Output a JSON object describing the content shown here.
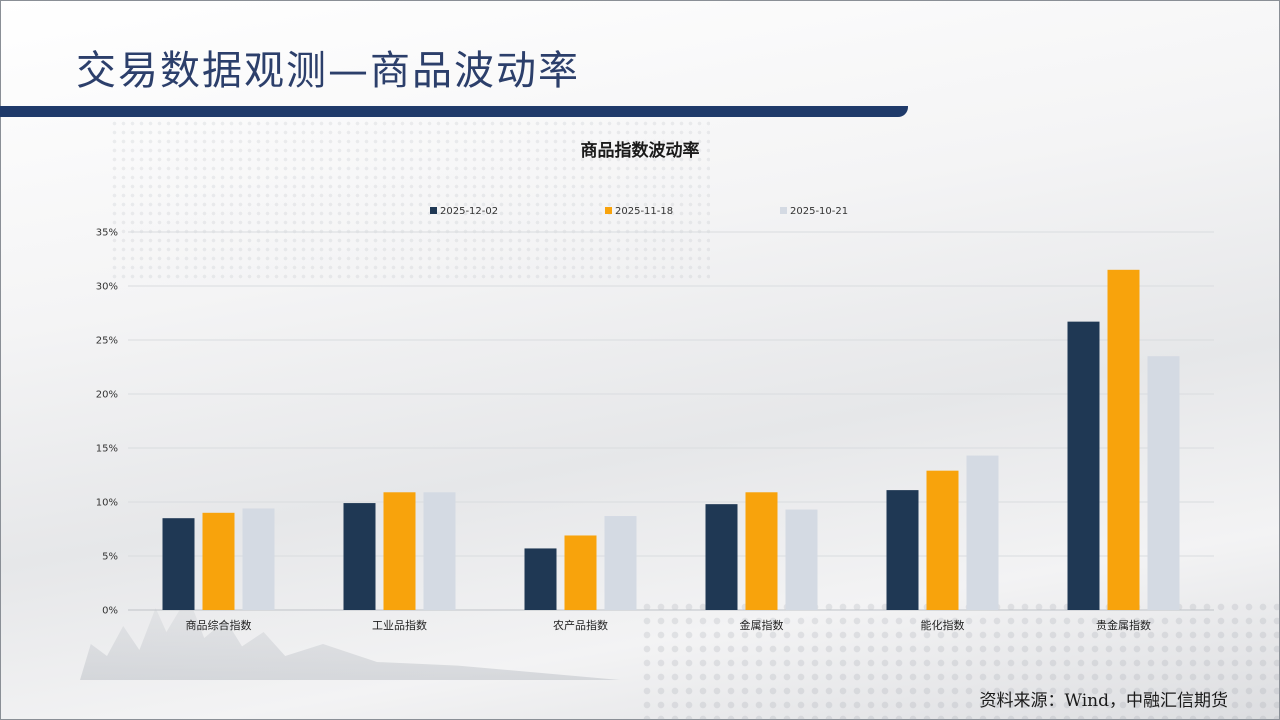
{
  "header": {
    "title": "交易数据观测—商品波动率"
  },
  "colors": {
    "accent": "#1f3a6a",
    "series": [
      "#1f3854",
      "#f8a30c",
      "#d4dae3"
    ]
  },
  "chart_data": {
    "type": "bar",
    "title": "商品指数波动率",
    "categories": [
      "商品综合指数",
      "工业品指数",
      "农产品指数",
      "金属指数",
      "能化指数",
      "贵金属指数"
    ],
    "series": [
      {
        "name": "2025-12-02",
        "values": [
          8.5,
          9.9,
          5.7,
          9.8,
          11.1,
          26.7
        ]
      },
      {
        "name": "2025-11-18",
        "values": [
          9.0,
          10.9,
          6.9,
          10.9,
          12.9,
          31.5
        ]
      },
      {
        "name": "2025-10-21",
        "values": [
          9.4,
          10.9,
          8.7,
          9.3,
          14.3,
          23.5
        ]
      }
    ],
    "ylim": [
      0,
      35
    ],
    "yticks": [
      "0%",
      "5%",
      "10%",
      "15%",
      "20%",
      "25%",
      "30%",
      "35%"
    ],
    "grid": true,
    "legend_position": "top"
  },
  "footer": {
    "source": "资料来源：Wind，中融汇信期货"
  }
}
